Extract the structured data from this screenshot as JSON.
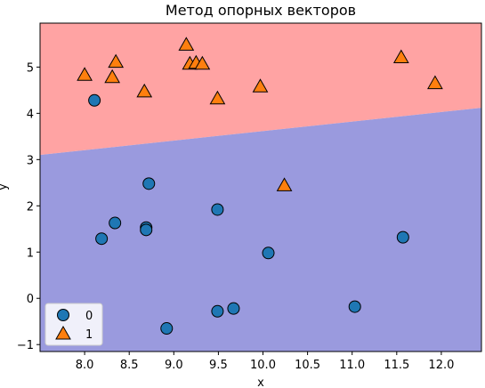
{
  "chart_data": {
    "type": "scatter",
    "title": "Метод опорных векторов",
    "xlabel": "x",
    "ylabel": "y",
    "xlim": [
      7.5,
      12.45
    ],
    "ylim": [
      -1.15,
      5.95
    ],
    "xticks": [
      "8.0",
      "8.5",
      "9.0",
      "9.5",
      "10.0",
      "10.5",
      "11.0",
      "11.5",
      "12.0"
    ],
    "yticks": [
      "−1",
      "0",
      "1",
      "2",
      "3",
      "4",
      "5"
    ],
    "xtick_values": [
      8.0,
      8.5,
      9.0,
      9.5,
      10.0,
      10.5,
      11.0,
      11.5,
      12.0
    ],
    "ytick_values": [
      -1,
      0,
      1,
      2,
      3,
      4,
      5
    ],
    "decision_boundary": {
      "x": [
        7.5,
        12.45
      ],
      "y": [
        3.1,
        4.12
      ]
    },
    "region_colors": {
      "class_1": "#ffa3a3",
      "class_0": "#9a9ade"
    },
    "legend": {
      "position": "lower-left"
    },
    "series": [
      {
        "name": "0",
        "marker": "circle",
        "color": "#1f77b4",
        "points": [
          [
            8.11,
            4.28
          ],
          [
            8.72,
            2.48
          ],
          [
            8.34,
            1.63
          ],
          [
            8.69,
            1.53
          ],
          [
            8.69,
            1.48
          ],
          [
            8.19,
            1.29
          ],
          [
            9.49,
            1.92
          ],
          [
            10.06,
            0.98
          ],
          [
            11.57,
            1.32
          ],
          [
            9.67,
            -0.22
          ],
          [
            9.49,
            -0.28
          ],
          [
            8.92,
            -0.65
          ],
          [
            11.03,
            -0.18
          ]
        ]
      },
      {
        "name": "1",
        "marker": "triangle",
        "color": "#ff7f0e",
        "points": [
          [
            8.0,
            4.83
          ],
          [
            8.35,
            5.11
          ],
          [
            8.31,
            4.78
          ],
          [
            8.67,
            4.47
          ],
          [
            9.14,
            5.48
          ],
          [
            9.18,
            5.07
          ],
          [
            9.25,
            5.09
          ],
          [
            9.32,
            5.07
          ],
          [
            9.49,
            4.32
          ],
          [
            9.97,
            4.58
          ],
          [
            11.55,
            5.21
          ],
          [
            11.93,
            4.65
          ],
          [
            10.24,
            2.44
          ]
        ]
      }
    ]
  }
}
